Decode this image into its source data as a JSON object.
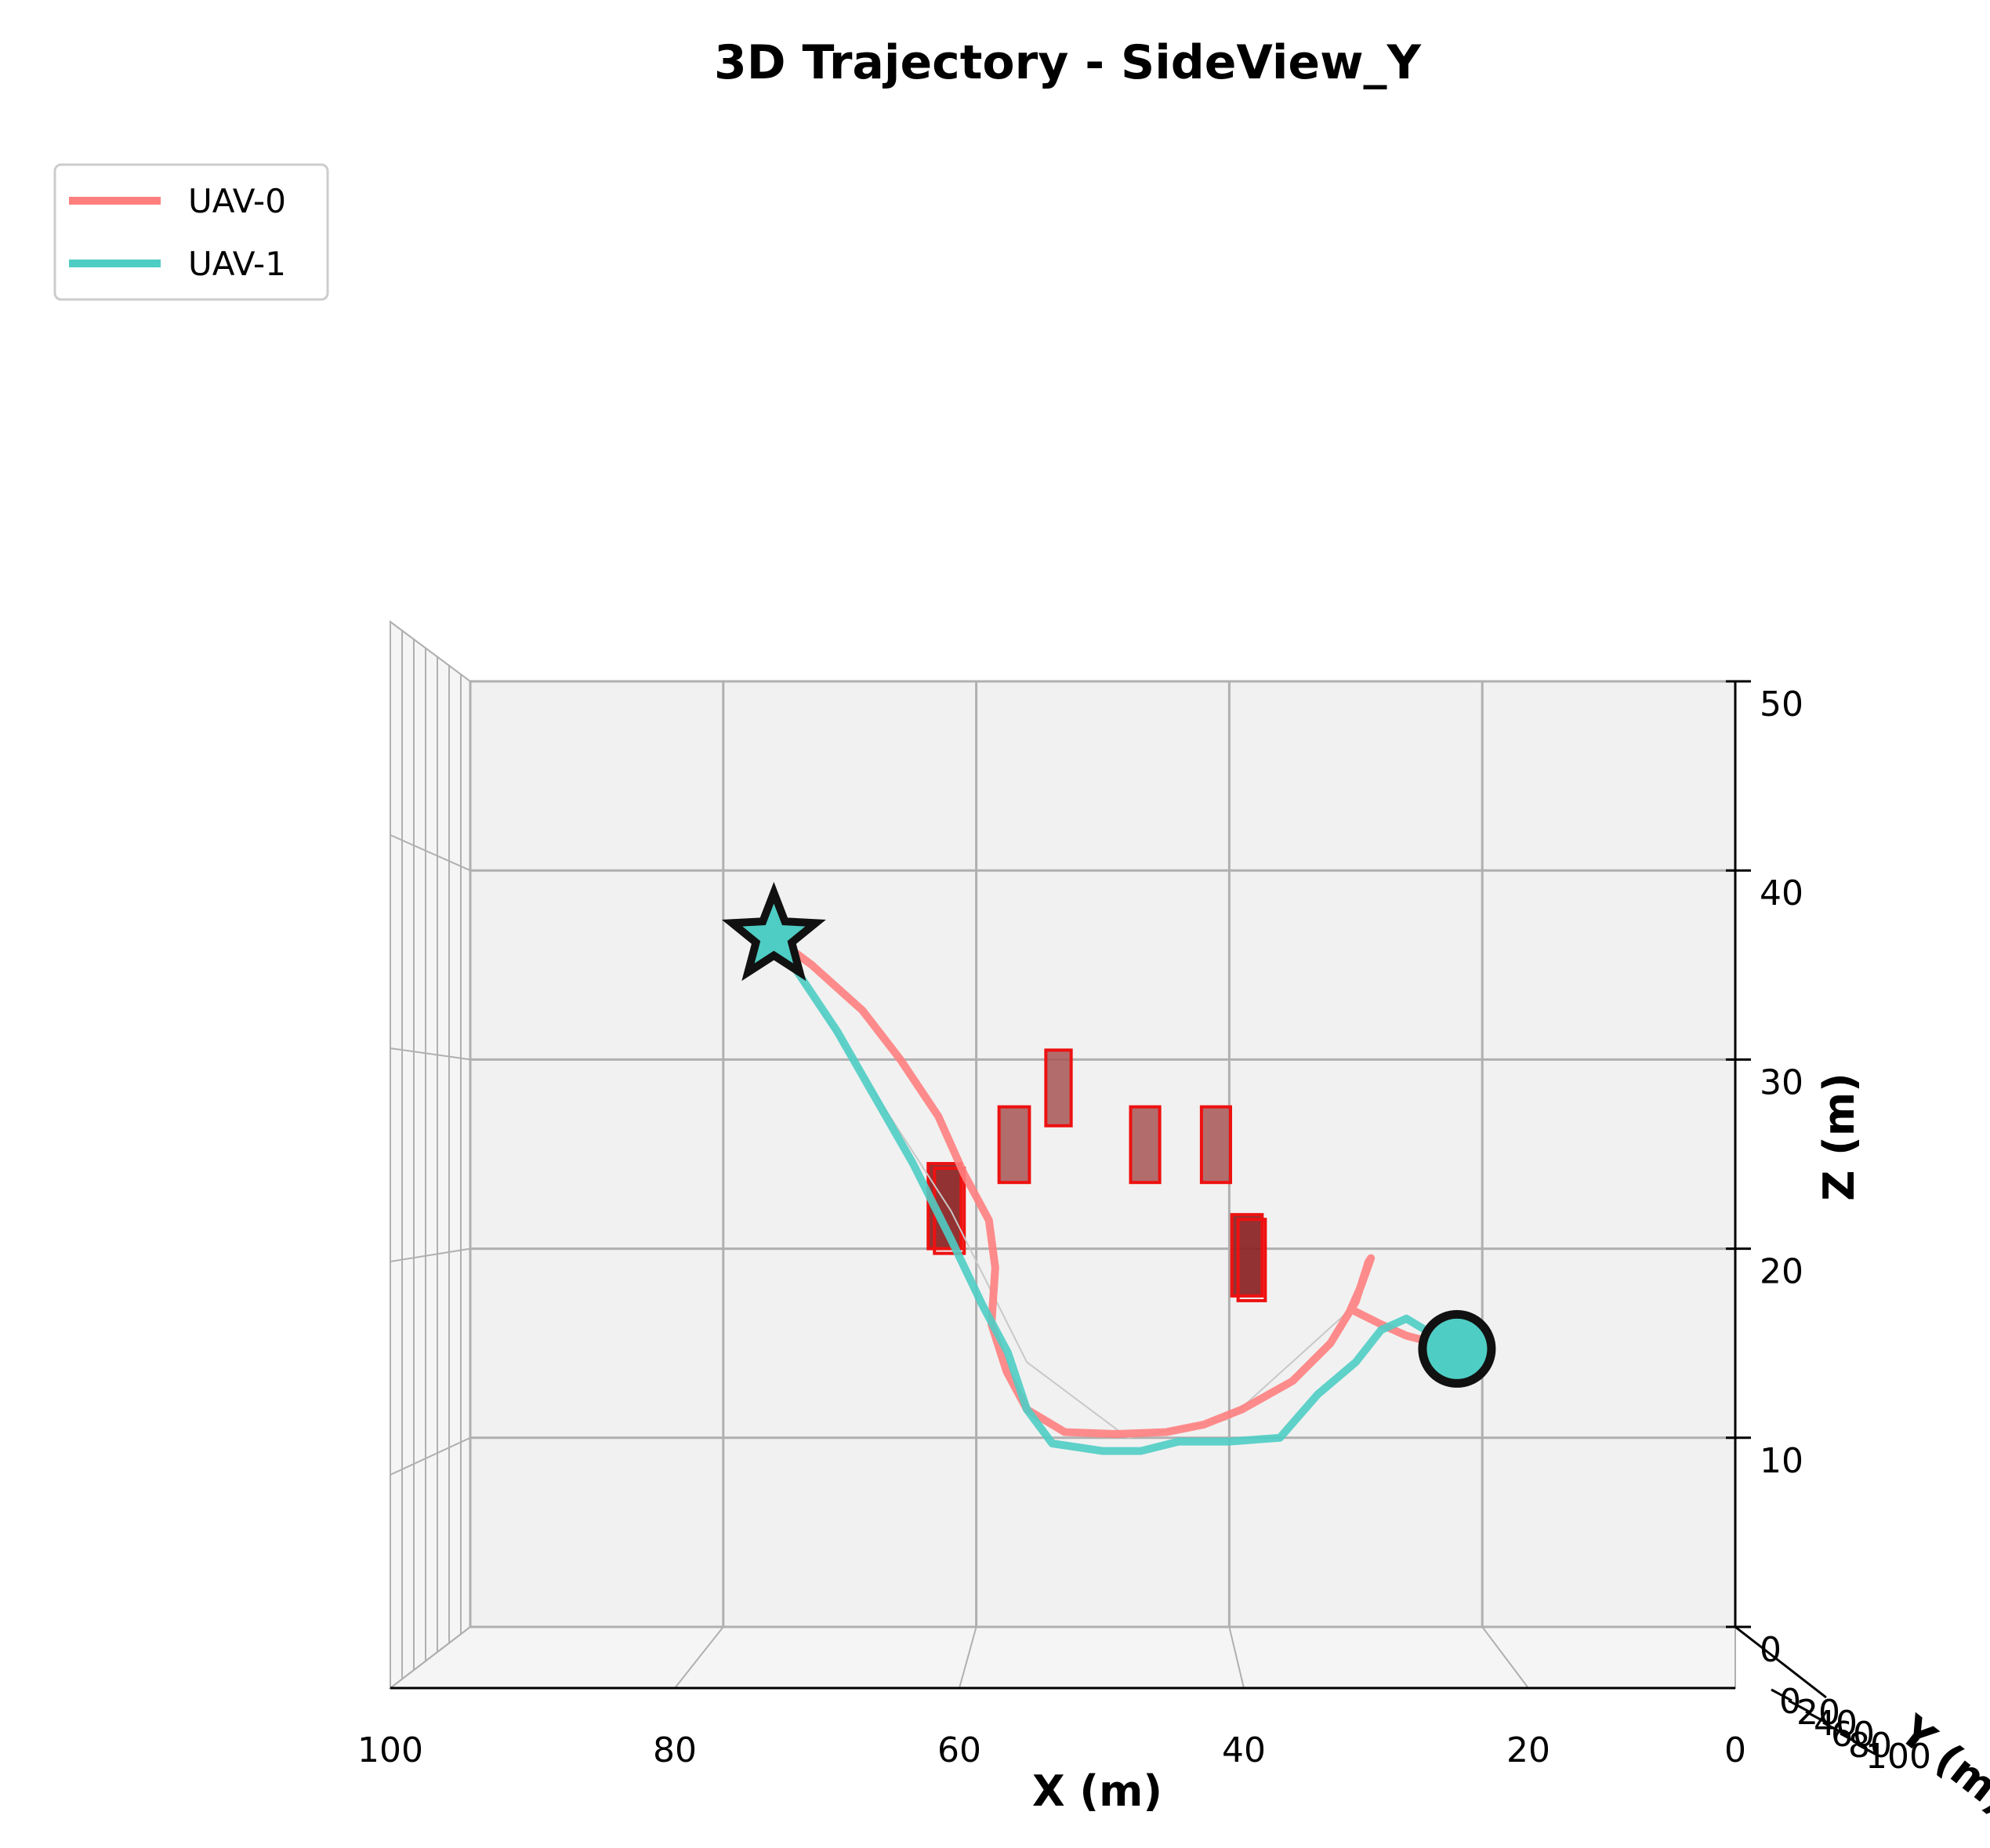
{
  "chart_data": {
    "type": "line",
    "title": "3D Trajectory - SideView_Y",
    "xlabel": "X (m)",
    "ylabel": "Y (m)",
    "zlabel": "Z (m)",
    "x_inverted": true,
    "xlim": [
      0,
      100
    ],
    "zlim": [
      0,
      50
    ],
    "x_ticks": [
      "100",
      "80",
      "60",
      "40",
      "20",
      "0"
    ],
    "y_ticks": [
      "0",
      "20",
      "40",
      "60",
      "80",
      "100"
    ],
    "z_ticks": [
      "0",
      "10",
      "20",
      "30",
      "40",
      "50"
    ],
    "legend": {
      "position": "top-left"
    },
    "grid": true,
    "colors": {
      "uav0": "#ff7f7f",
      "uav1": "#4ecdc4",
      "obstacle_face": "#a85555",
      "obstacle_edge": "#ee1111",
      "pane": "#f1f1f1"
    },
    "series": [
      {
        "name": "UAV-0",
        "color": "#ff7f7f",
        "points": [
          [
            76,
            36.5
          ],
          [
            73,
            35
          ],
          [
            69,
            32.6
          ],
          [
            66,
            30
          ],
          [
            63,
            27
          ],
          [
            61,
            24
          ],
          [
            59,
            21.5
          ],
          [
            58.5,
            19
          ],
          [
            58.8,
            16
          ],
          [
            57.6,
            13.5
          ],
          [
            56,
            11.5
          ],
          [
            53,
            10.3
          ],
          [
            49,
            10.2
          ],
          [
            45,
            10.3
          ],
          [
            42,
            10.7
          ],
          [
            39,
            11.5
          ],
          [
            35,
            13
          ],
          [
            32,
            15
          ],
          [
            30,
            17.2
          ],
          [
            29,
            19.3
          ],
          [
            28.8,
            19.5
          ],
          [
            29.6,
            18
          ],
          [
            30.4,
            16.8
          ],
          [
            28,
            16
          ],
          [
            26,
            15.4
          ],
          [
            22,
            14.7
          ]
        ]
      },
      {
        "name": "UAV-1",
        "color": "#4ecdc4",
        "points": [
          [
            76,
            36.5
          ],
          [
            74,
            34.5
          ],
          [
            71,
            31.5
          ],
          [
            68,
            28
          ],
          [
            65,
            24.5
          ],
          [
            62,
            20.5
          ],
          [
            59.5,
            17
          ],
          [
            57.5,
            14.5
          ],
          [
            56,
            11.5
          ],
          [
            54,
            9.7
          ],
          [
            50,
            9.3
          ],
          [
            47,
            9.3
          ],
          [
            44,
            9.8
          ],
          [
            40,
            9.8
          ],
          [
            36,
            10
          ],
          [
            33,
            12.3
          ],
          [
            30,
            14
          ],
          [
            28,
            15.7
          ],
          [
            26,
            16.3
          ],
          [
            24,
            15.5
          ],
          [
            22,
            14.7
          ]
        ]
      }
    ],
    "markers": [
      {
        "label": "start",
        "shape": "circle",
        "x": 22,
        "z": 14.7
      },
      {
        "label": "goal",
        "shape": "star",
        "x": 76,
        "z": 36.5
      }
    ],
    "obstacles": [
      {
        "x0": 61.2,
        "x1": 63.8,
        "z0": 20,
        "z1": 24.5,
        "dark": true
      },
      {
        "x0": 55.8,
        "x1": 58.2,
        "z0": 23.5,
        "z1": 27.5
      },
      {
        "x0": 52.5,
        "x1": 54.5,
        "z0": 26.5,
        "z1": 30.5
      },
      {
        "x0": 45.5,
        "x1": 47.8,
        "z0": 23.5,
        "z1": 27.5
      },
      {
        "x0": 37.4,
        "x1": 39.8,
        "z0": 17.5,
        "z1": 21.8,
        "dark": true
      },
      {
        "x0": 39.9,
        "x1": 42.2,
        "z0": 23.5,
        "z1": 27.5
      }
    ]
  }
}
